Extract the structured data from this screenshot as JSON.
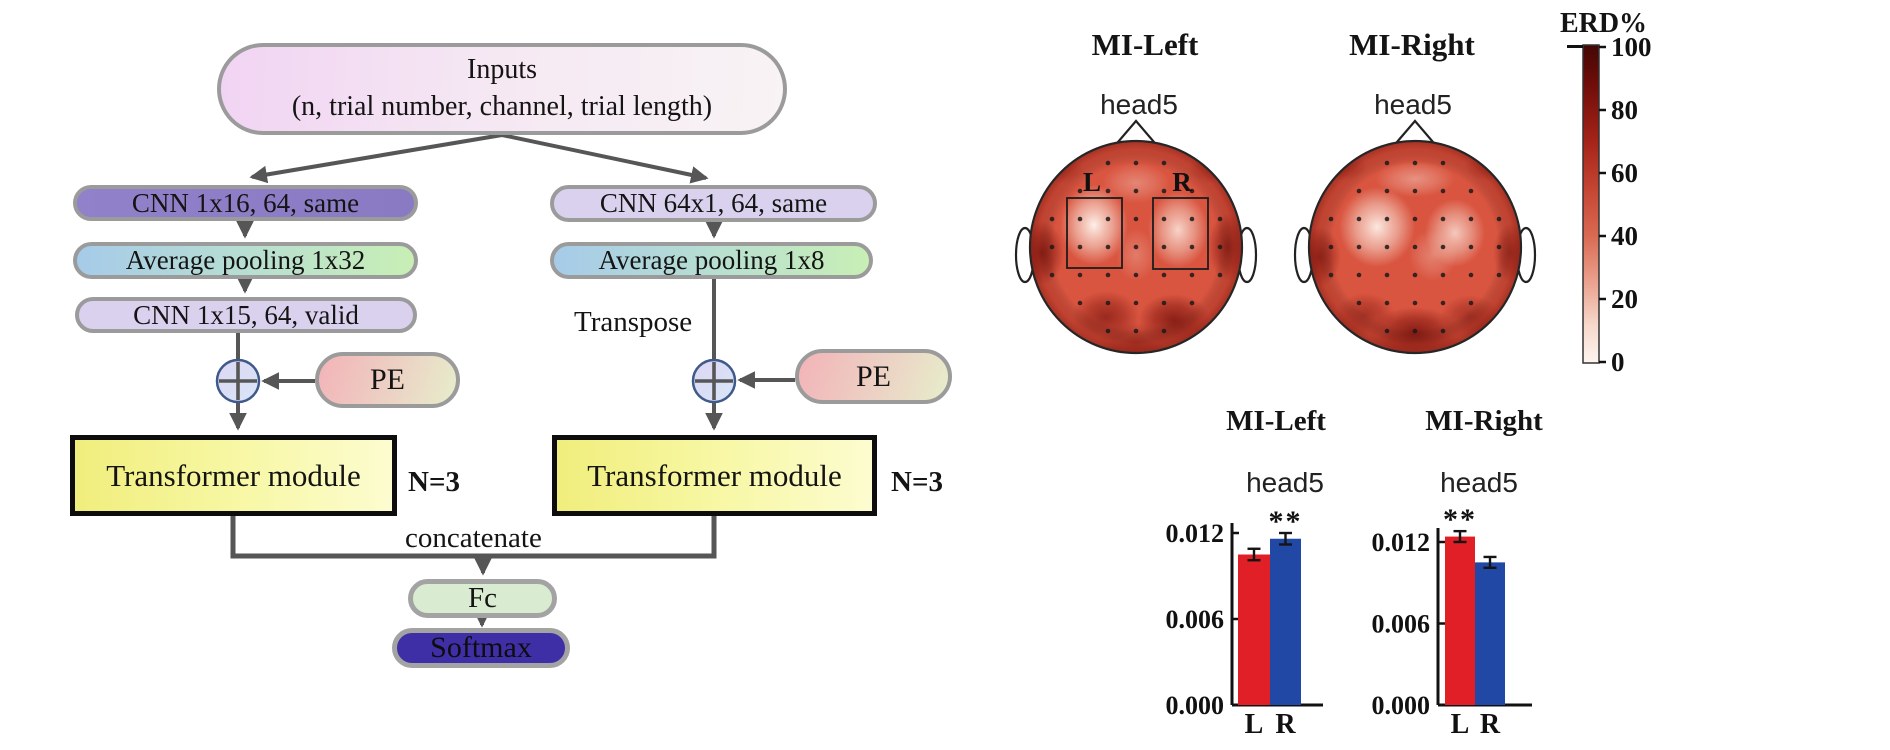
{
  "flowchart": {
    "inputs_title": "Inputs",
    "inputs_subtitle": "(n, trial number, channel, trial length)",
    "left_branch": {
      "cnn_a": "CNN 1x16, 64, same",
      "pooling": "Average pooling 1x32",
      "cnn_b": "CNN 1x15, 64, valid",
      "pe": "PE",
      "transformer": "Transformer module",
      "repeat": "N=3"
    },
    "right_branch": {
      "cnn_a": "CNN 64x1, 64, same",
      "pooling": "Average pooling 1x8",
      "transpose": "Transpose",
      "pe": "PE",
      "transformer": "Transformer module",
      "repeat": "N=3"
    },
    "concatenate_label": "concatenate",
    "fc": "Fc",
    "softmax": "Softmax"
  },
  "topomaps": {
    "left": {
      "title": "MI-Left",
      "head": "head5",
      "roi_left": "L",
      "roi_right": "R"
    },
    "right": {
      "title": "MI-Right",
      "head": "head5"
    },
    "colorbar": {
      "title": "ERD%",
      "ticks": [
        "100",
        "80",
        "60",
        "40",
        "20",
        "0"
      ],
      "top_color": "#430705",
      "bottom_color": "#fdf5ef"
    }
  },
  "chart_data": [
    {
      "type": "bar",
      "title": "MI-Left",
      "subtitle": "head5",
      "categories": [
        "L",
        "R"
      ],
      "values": [
        0.0105,
        0.0116
      ],
      "errors": [
        0.0004,
        0.0004
      ],
      "significance": {
        "label": "**",
        "bar": "R"
      },
      "bar_colors": [
        "#e11f26",
        "#2148a5"
      ],
      "yticks": [
        "0.000",
        "0.006",
        "0.012"
      ],
      "ylim": [
        0,
        0.0135
      ],
      "xlabel": "",
      "ylabel": ""
    },
    {
      "type": "bar",
      "title": "MI-Right",
      "subtitle": "head5",
      "categories": [
        "L",
        "R"
      ],
      "values": [
        0.0124,
        0.0105
      ],
      "errors": [
        0.0004,
        0.0004
      ],
      "significance": {
        "label": "**",
        "bar": "L"
      },
      "bar_colors": [
        "#e11f26",
        "#2148a5"
      ],
      "yticks": [
        "0.000",
        "0.006",
        "0.012"
      ],
      "ylim": [
        0,
        0.0135
      ],
      "xlabel": "",
      "ylabel": ""
    }
  ]
}
